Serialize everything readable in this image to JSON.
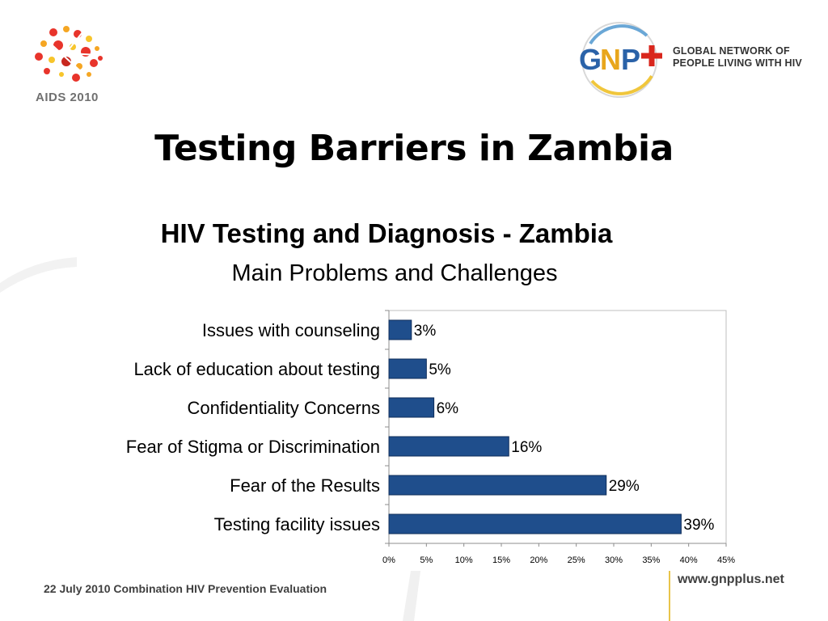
{
  "header": {
    "aids_logo_text": "AIDS 2010",
    "gnp_logo_mark": "GNP+",
    "gnp_logo_line1": "GLOBAL NETWORK OF",
    "gnp_logo_line2": "PEOPLE LIVING WITH HIV"
  },
  "slide_title": "Testing Barriers in Zambia",
  "chart_data": {
    "type": "bar",
    "orientation": "horizontal",
    "title": "HIV Testing and Diagnosis - Zambia",
    "subtitle": "Main Problems and Challenges",
    "categories": [
      "Issues with counseling",
      "Lack of education about testing",
      "Confidentiality Concerns",
      "Fear of Stigma or Discrimination",
      "Fear of the Results",
      "Testing facility issues"
    ],
    "values": [
      3,
      5,
      6,
      16,
      29,
      39
    ],
    "data_labels": [
      "3%",
      "5%",
      "6%",
      "16%",
      "29%",
      "39%"
    ],
    "xlim": [
      0,
      45
    ],
    "x_ticks": [
      "0%",
      "5%",
      "10%",
      "15%",
      "20%",
      "25%",
      "30%",
      "35%",
      "40%",
      "45%"
    ],
    "grid": false,
    "legend": "none",
    "bar_color": "#1f4e8c"
  },
  "footer": {
    "date_text": "22 July 2010 Combination HIV Prevention Evaluation",
    "url": "www.gnpplus.net"
  }
}
